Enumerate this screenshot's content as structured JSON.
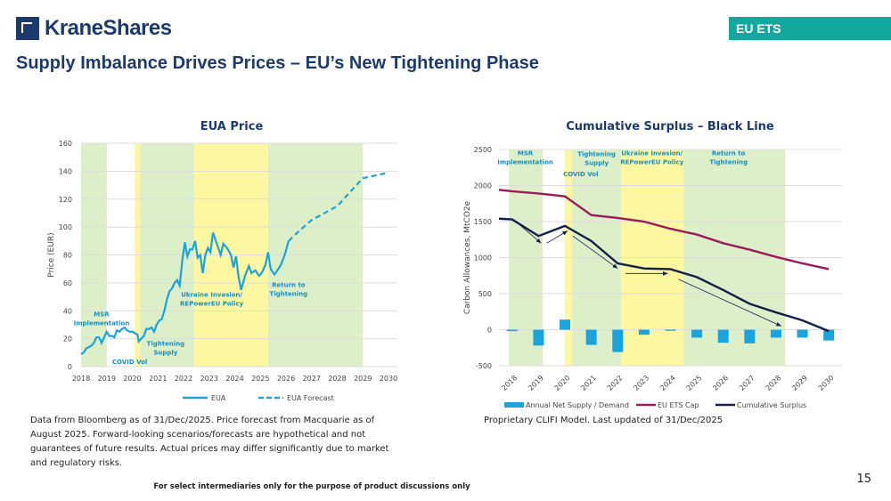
{
  "header": {
    "logo": "KraneShares",
    "tag": "EU ETS",
    "title": "Supply Imbalance Drives Prices – EU’s New Tightening Phase"
  },
  "chart_data": [
    {
      "type": "line",
      "title": "EUA Price",
      "ylabel": "Price (EUR)",
      "ylim": [
        0,
        160
      ],
      "yticks": [
        "0",
        "20",
        "40",
        "60",
        "80",
        "100",
        "120",
        "140",
        "160"
      ],
      "xticks": [
        "2018",
        "2019",
        "2020",
        "2021",
        "2022",
        "2023",
        "2024",
        "2025",
        "2026",
        "2027",
        "2028",
        "2029",
        "2030"
      ],
      "bands": [
        {
          "from": 2018,
          "to": 2019,
          "color": "#dcefc8"
        },
        {
          "from": 2020.1,
          "to": 2020.3,
          "color": "#fcf7a0"
        },
        {
          "from": 2020.3,
          "to": 2022.4,
          "color": "#dcefc8"
        },
        {
          "from": 2022.4,
          "to": 2025.3,
          "color": "#fcf7a0"
        },
        {
          "from": 2025.3,
          "to": 2029,
          "color": "#dcefc8"
        }
      ],
      "annotations": [
        {
          "text": "MSR",
          "sub": "Implementation",
          "x": 2018.8,
          "y": 36
        },
        {
          "text": "COVID Vol",
          "x": 2019.9,
          "y": 2
        },
        {
          "text": "Tightening",
          "sub": "Supply",
          "x": 2021.3,
          "y": 15
        },
        {
          "text": "Ukraine Invasion/",
          "sub": "REPowerEU Policy",
          "x": 2023.1,
          "y": 50
        },
        {
          "text": "Return to",
          "sub": "Tightening",
          "x": 2026.1,
          "y": 57
        }
      ],
      "series": [
        {
          "name": "EUA",
          "style": "solid",
          "color": "#1aa3dc",
          "points": [
            [
              2018,
              9
            ],
            [
              2018.1,
              10
            ],
            [
              2018.2,
              13
            ],
            [
              2018.3,
              14
            ],
            [
              2018.4,
              15
            ],
            [
              2018.5,
              17
            ],
            [
              2018.6,
              21
            ],
            [
              2018.7,
              21
            ],
            [
              2018.8,
              17
            ],
            [
              2018.9,
              21
            ],
            [
              2019,
              25
            ],
            [
              2019.1,
              22
            ],
            [
              2019.2,
              22
            ],
            [
              2019.3,
              21
            ],
            [
              2019.4,
              26
            ],
            [
              2019.5,
              25
            ],
            [
              2019.6,
              27
            ],
            [
              2019.7,
              28
            ],
            [
              2019.8,
              26
            ],
            [
              2019.9,
              25
            ],
            [
              2020,
              25
            ],
            [
              2020.1,
              24
            ],
            [
              2020.2,
              23
            ],
            [
              2020.25,
              18
            ],
            [
              2020.35,
              20
            ],
            [
              2020.45,
              22
            ],
            [
              2020.55,
              27
            ],
            [
              2020.65,
              27
            ],
            [
              2020.75,
              28
            ],
            [
              2020.85,
              25
            ],
            [
              2020.95,
              30
            ],
            [
              2021.05,
              33
            ],
            [
              2021.15,
              34
            ],
            [
              2021.25,
              40
            ],
            [
              2021.35,
              48
            ],
            [
              2021.45,
              54
            ],
            [
              2021.55,
              56
            ],
            [
              2021.65,
              60
            ],
            [
              2021.75,
              62
            ],
            [
              2021.85,
              58
            ],
            [
              2021.95,
              76
            ],
            [
              2022.05,
              89
            ],
            [
              2022.15,
              79
            ],
            [
              2022.25,
              84
            ],
            [
              2022.35,
              84
            ],
            [
              2022.45,
              90
            ],
            [
              2022.55,
              78
            ],
            [
              2022.65,
              80
            ],
            [
              2022.75,
              67
            ],
            [
              2022.85,
              80
            ],
            [
              2022.95,
              85
            ],
            [
              2023.05,
              82
            ],
            [
              2023.15,
              96
            ],
            [
              2023.3,
              88
            ],
            [
              2023.45,
              80
            ],
            [
              2023.55,
              88
            ],
            [
              2023.7,
              85
            ],
            [
              2023.85,
              80
            ],
            [
              2023.95,
              71
            ],
            [
              2024.05,
              79
            ],
            [
              2024.15,
              64
            ],
            [
              2024.25,
              55
            ],
            [
              2024.4,
              65
            ],
            [
              2024.55,
              72
            ],
            [
              2024.65,
              67
            ],
            [
              2024.8,
              69
            ],
            [
              2024.95,
              65
            ],
            [
              2025.05,
              67
            ],
            [
              2025.2,
              73
            ],
            [
              2025.3,
              82
            ],
            [
              2025.4,
              70
            ],
            [
              2025.55,
              66
            ],
            [
              2025.7,
              70
            ],
            [
              2025.8,
              73
            ],
            [
              2025.95,
              80
            ],
            [
              2026.1,
              90
            ]
          ]
        },
        {
          "name": "EUA Forecast",
          "style": "dashed",
          "color": "#1aa3dc",
          "points": [
            [
              2026.1,
              90
            ],
            [
              2026.5,
              97
            ],
            [
              2027,
              105
            ],
            [
              2027.5,
              110
            ],
            [
              2028,
              115
            ],
            [
              2028.5,
              125
            ],
            [
              2029,
              135
            ],
            [
              2029.5,
              137
            ],
            [
              2030,
              139
            ]
          ]
        }
      ]
    },
    {
      "type": "bar+line",
      "title": "Cumulative Surplus – Black Line",
      "ylabel": "Carbon Allowances, MtCO2e",
      "ylim": [
        -500,
        2500
      ],
      "yticks": [
        "-500",
        "0",
        "500",
        "1000",
        "1500",
        "2000",
        "2500"
      ],
      "categories": [
        "2018",
        "2019",
        "2020",
        "2021",
        "2022",
        "2023",
        "2024",
        "2025",
        "2026",
        "2027",
        "2028",
        "2029",
        "2030"
      ],
      "bands": [
        {
          "from": -0.12,
          "to": 1.16,
          "color": "#dcefc8"
        },
        {
          "from": 2.0,
          "to": 2.27,
          "color": "#fcf7a0"
        },
        {
          "from": 2.27,
          "to": 4.13,
          "color": "#dcefc8"
        },
        {
          "from": 4.13,
          "to": 6.5,
          "color": "#fcf7a0"
        },
        {
          "from": 6.5,
          "to": 10.35,
          "color": "#dcefc8"
        }
      ],
      "annotations": [
        {
          "text": "MSR",
          "sub": "Implementation",
          "x": 0.5,
          "y": 2420
        },
        {
          "text": "COVID Vol",
          "x": 2.6,
          "y": 2130
        },
        {
          "text": "Tightening",
          "sub": "Supply",
          "x": 3.2,
          "y": 2410
        },
        {
          "text": "Ukraine Invasion/",
          "sub": "REPowerEU Policy",
          "x": 5.3,
          "y": 2420
        },
        {
          "text": "Return to",
          "sub": "Tightening",
          "x": 8.2,
          "y": 2420
        }
      ],
      "series": [
        {
          "name": "Annual Net Supply / Demand",
          "type": "bar",
          "color": "#1aa3dc",
          "values": [
            -20,
            -220,
            140,
            -210,
            -310,
            -70,
            -15,
            -110,
            -180,
            -190,
            -110,
            -110,
            -150
          ]
        },
        {
          "name": "EU ETS Cap",
          "type": "line",
          "color": "#9b1b5a",
          "start": 1940,
          "values": [
            1920,
            1890,
            1850,
            1590,
            1550,
            1500,
            1400,
            1320,
            1200,
            1110,
            1010,
            920,
            840
          ]
        },
        {
          "name": "Cumulative Surplus",
          "type": "line",
          "color": "#14204a",
          "start": 1540,
          "values": [
            1530,
            1300,
            1440,
            1230,
            920,
            850,
            840,
            730,
            550,
            360,
            240,
            130,
            -20
          ]
        }
      ],
      "arrows": [
        [
          [
            0.3,
            1450
          ],
          [
            1.1,
            1200
          ]
        ],
        [
          [
            1.3,
            1200
          ],
          [
            2.1,
            1370
          ]
        ],
        [
          [
            2.3,
            1300
          ],
          [
            4.0,
            850
          ]
        ],
        [
          [
            4.3,
            780
          ],
          [
            5.9,
            780
          ]
        ],
        [
          [
            6.3,
            700
          ],
          [
            10.2,
            50
          ]
        ]
      ]
    }
  ],
  "notes": {
    "left": "Data from Bloomberg as of 31/Dec/2025. Price forecast from Macquarie as of August 2025. Forward-looking scenarios/forecasts are hypothetical and not guarantees of future results. Actual prices may differ significantly due to market and regulatory risks.",
    "right": "Proprietary CLIFI Model. Last updated of 31/Dec/2025"
  },
  "footer": "For select intermediaries only for the purpose of product discussions only",
  "page_number": "15"
}
